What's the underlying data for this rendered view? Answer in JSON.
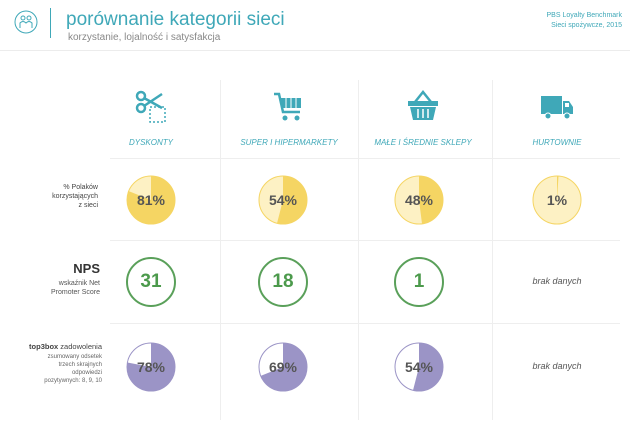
{
  "header": {
    "title": "porównanie kategorii sieci",
    "subtitle": "korzystanie, lojalność i satysfakcja",
    "badge_line1": "PBS Loyalty Benchmark",
    "badge_line2": "Sieci spożywcze, 2015"
  },
  "categories": [
    {
      "label": "DYSKONTY",
      "icon": "scissors-coupon-icon"
    },
    {
      "label": "SUPER I HIPERMARKETY",
      "icon": "shopping-cart-icon"
    },
    {
      "label": "MAŁE I ŚREDNIE SKLEPY",
      "icon": "shopping-basket-icon"
    },
    {
      "label": "HURTOWNIE",
      "icon": "delivery-truck-icon"
    }
  ],
  "rows": {
    "usage": {
      "label_line1": "% Polaków",
      "label_line2": "korzystających",
      "label_line3": "z sieci",
      "values": [
        "81%",
        "54%",
        "48%",
        "1%"
      ],
      "fractions": [
        0.81,
        0.54,
        0.48,
        0.01
      ],
      "color": "#f5d563",
      "bg_color": "#fdf1c4"
    },
    "nps": {
      "title": "NPS",
      "sub_line1": "wskaźnik Net",
      "sub_line2": "Promoter Score",
      "values": [
        "31",
        "18",
        "1"
      ],
      "no_data": "brak danych",
      "color": "#5aa05a"
    },
    "satisfaction": {
      "head_bold": "top3box",
      "head_rest": " zadowolenia",
      "sub_line1": "zsumowany odsetek",
      "sub_line2": "trzech skrajnych",
      "sub_line3": "odpowiedzi",
      "sub_line4": "pozytywnych: 8, 9, 10",
      "values": [
        "78%",
        "69%",
        "54%"
      ],
      "fractions": [
        0.78,
        0.69,
        0.54
      ],
      "no_data": "brak danych",
      "color": "#9b94c6",
      "bg_color": "#ffffff"
    }
  }
}
